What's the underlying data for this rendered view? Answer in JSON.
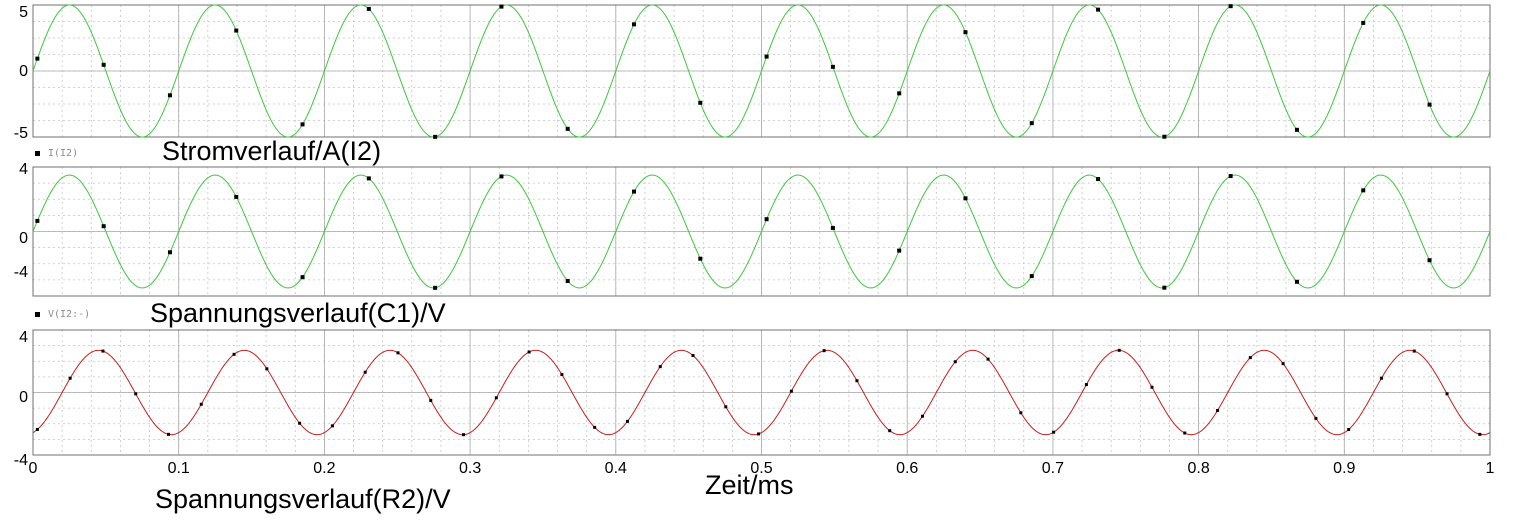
{
  "chart_data": {
    "type": "line",
    "x_unit": "ms",
    "x_range": [
      0,
      1
    ],
    "x_ticks": [
      "0",
      "0.1",
      "0.2",
      "0.3",
      "0.4",
      "0.5",
      "0.6",
      "0.7",
      "0.8",
      "0.9",
      "1"
    ],
    "x_title": "Zeit/ms",
    "frequency_khz": 10,
    "grid": true,
    "plots": [
      {
        "id": "current",
        "title": "Stromverlauf/A(I2)",
        "legend": "I(I2)",
        "color": "#3cc83c",
        "y_range": [
          -5,
          5
        ],
        "y_ticks": [
          "5",
          "0",
          "-5"
        ],
        "amplitude": 5,
        "phase_deg": 0
      },
      {
        "id": "voltage_c1",
        "title": "Spannungsverlauf(C1)/V",
        "legend": "V(I2:-)",
        "color": "#3cc83c",
        "y_range": [
          -4,
          4
        ],
        "y_ticks": [
          "4",
          "0",
          "-4"
        ],
        "amplitude": 3.5,
        "phase_deg": 0
      },
      {
        "id": "voltage_r2",
        "title": "Spannungsverlauf(R2)/V",
        "legend": "",
        "color": "#c81e1e",
        "y_range": [
          -4,
          4
        ],
        "y_ticks": [
          "4",
          "0",
          "-4"
        ],
        "amplitude": 2.7,
        "phase_deg": -72
      }
    ]
  }
}
